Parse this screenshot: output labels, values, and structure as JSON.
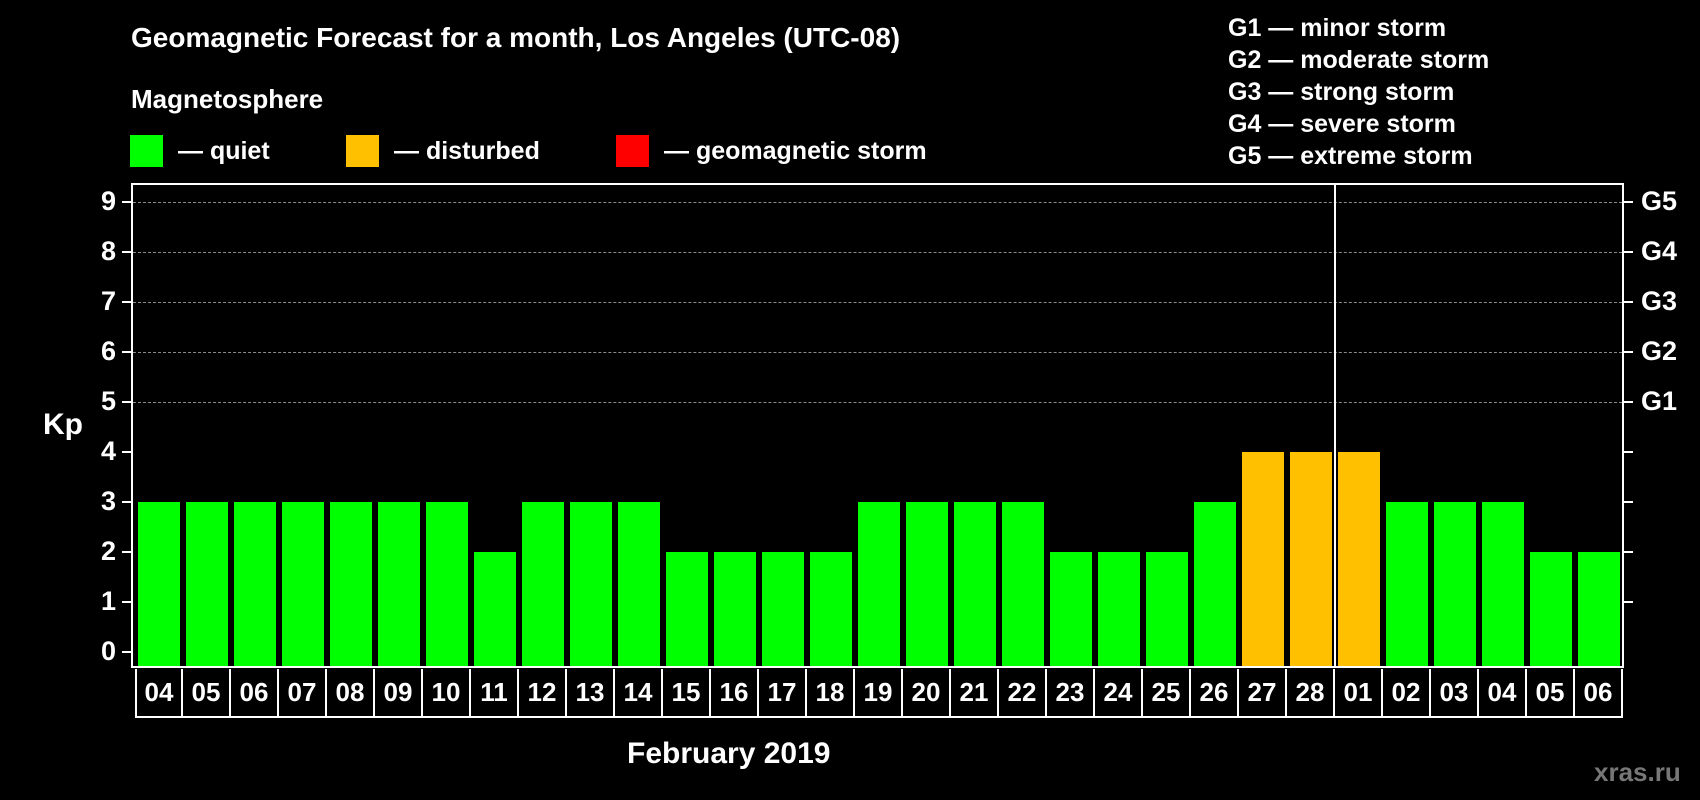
{
  "title": "Geomagnetic Forecast for a month, Los Angeles (UTC-08)",
  "subtitle": "Magnetosphere",
  "legend": [
    {
      "label": "— quiet",
      "color": "#00FF00"
    },
    {
      "label": "— disturbed",
      "color": "#FFC000"
    },
    {
      "label": "— geomagnetic storm",
      "color": "#FF0000"
    }
  ],
  "storm_scale": [
    "G1 — minor storm",
    "G2 — moderate storm",
    "G3 — strong storm",
    "G4 — severe storm",
    "G5 — extreme storm"
  ],
  "watermark": "xras.ru",
  "chart_data": {
    "type": "bar",
    "title": "Geomagnetic Forecast for a month, Los Angeles (UTC-08)",
    "xlabel": "February 2019",
    "ylabel": "Kp",
    "ylim": [
      0,
      9
    ],
    "yticks": [
      0,
      1,
      2,
      3,
      4,
      5,
      6,
      7,
      8,
      9
    ],
    "right_axis_ticks": [
      {
        "value": 5,
        "label": "G1"
      },
      {
        "value": 6,
        "label": "G2"
      },
      {
        "value": 7,
        "label": "G3"
      },
      {
        "value": 8,
        "label": "G4"
      },
      {
        "value": 9,
        "label": "G5"
      }
    ],
    "grid": "dashed horizontal at 5-9",
    "month_divider_before": "01",
    "categories": [
      "04",
      "05",
      "06",
      "07",
      "08",
      "09",
      "10",
      "11",
      "12",
      "13",
      "14",
      "15",
      "16",
      "17",
      "18",
      "19",
      "20",
      "21",
      "22",
      "23",
      "24",
      "25",
      "26",
      "27",
      "28",
      "01",
      "02",
      "03",
      "04",
      "05",
      "06"
    ],
    "values": [
      3,
      3,
      3,
      3,
      3,
      3,
      3,
      2,
      3,
      3,
      3,
      2,
      2,
      2,
      2,
      3,
      3,
      3,
      3,
      2,
      2,
      2,
      3,
      4,
      4,
      4,
      3,
      3,
      3,
      2,
      2
    ],
    "status": [
      "quiet",
      "quiet",
      "quiet",
      "quiet",
      "quiet",
      "quiet",
      "quiet",
      "quiet",
      "quiet",
      "quiet",
      "quiet",
      "quiet",
      "quiet",
      "quiet",
      "quiet",
      "quiet",
      "quiet",
      "quiet",
      "quiet",
      "quiet",
      "quiet",
      "quiet",
      "quiet",
      "disturbed",
      "disturbed",
      "disturbed",
      "quiet",
      "quiet",
      "quiet",
      "quiet",
      "quiet"
    ],
    "colors": {
      "quiet": "#00FF00",
      "disturbed": "#FFC000",
      "storm": "#FF0000"
    },
    "legend_position": "top"
  }
}
